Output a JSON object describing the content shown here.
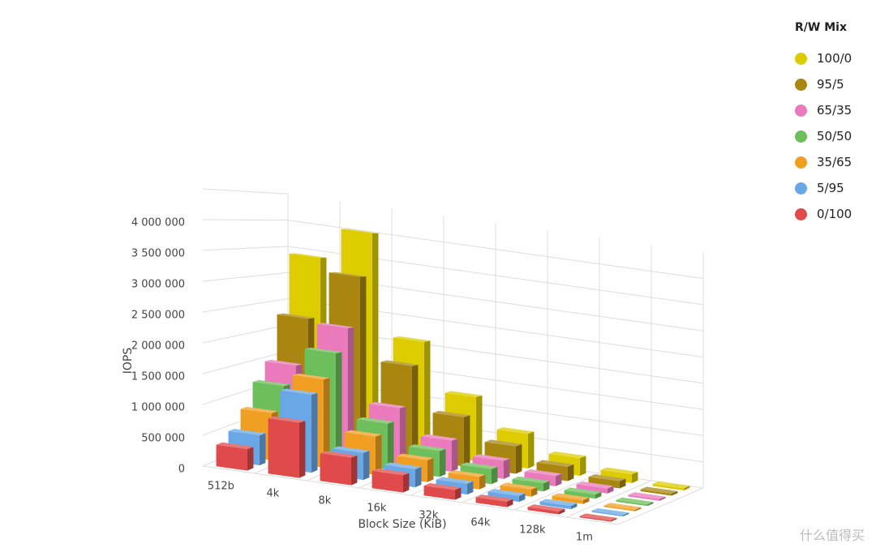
{
  "chart_data": {
    "type": "bar3d",
    "y_axis_label": "IOPS",
    "x_axis_label": "Block Size (KiB)",
    "legend_title": "R/W Mix",
    "legend_position": "top-right",
    "watermark": "什么值得买",
    "categories": [
      "512b",
      "4k",
      "8k",
      "16k",
      "32k",
      "64k",
      "128k",
      "1m"
    ],
    "series": [
      {
        "name": "100/0",
        "color": "#ddcc00",
        "values": [
          3400000,
          4000000,
          2100000,
          1200000,
          650000,
          330000,
          165000,
          40000
        ]
      },
      {
        "name": "95/5",
        "color": "#a8860f",
        "values": [
          2300000,
          3200000,
          1700000,
          900000,
          500000,
          260000,
          130000,
          35000
        ]
      },
      {
        "name": "65/35",
        "color": "#ea7abb",
        "values": [
          1500000,
          2300000,
          1000000,
          550000,
          320000,
          180000,
          90000,
          30000
        ]
      },
      {
        "name": "50/50",
        "color": "#6cbf5a",
        "values": [
          1200000,
          1900000,
          800000,
          450000,
          260000,
          140000,
          75000,
          28000
        ]
      },
      {
        "name": "35/65",
        "color": "#f19f22",
        "values": [
          800000,
          1500000,
          650000,
          370000,
          210000,
          120000,
          65000,
          25000
        ]
      },
      {
        "name": "5/95",
        "color": "#6aa7e6",
        "values": [
          500000,
          1300000,
          450000,
          300000,
          180000,
          100000,
          55000,
          22000
        ]
      },
      {
        "name": "0/100",
        "color": "#e04a4a",
        "values": [
          350000,
          900000,
          450000,
          280000,
          160000,
          90000,
          50000,
          20000
        ]
      }
    ],
    "ylim": [
      0,
      4500000
    ],
    "yticks": [
      0,
      {
        "value": 500000,
        "label": "500 000"
      },
      {
        "value": 1000000,
        "label": "1 000 000"
      },
      {
        "value": 1500000,
        "label": "1 500 000"
      },
      {
        "value": 2000000,
        "label": "2 000 000"
      },
      {
        "value": 2500000,
        "label": "2 500 000"
      },
      {
        "value": 3000000,
        "label": "3 000 000"
      },
      {
        "value": 3500000,
        "label": "3 500 000"
      },
      {
        "value": 4000000,
        "label": "4 000 000"
      }
    ],
    "grid": true
  }
}
